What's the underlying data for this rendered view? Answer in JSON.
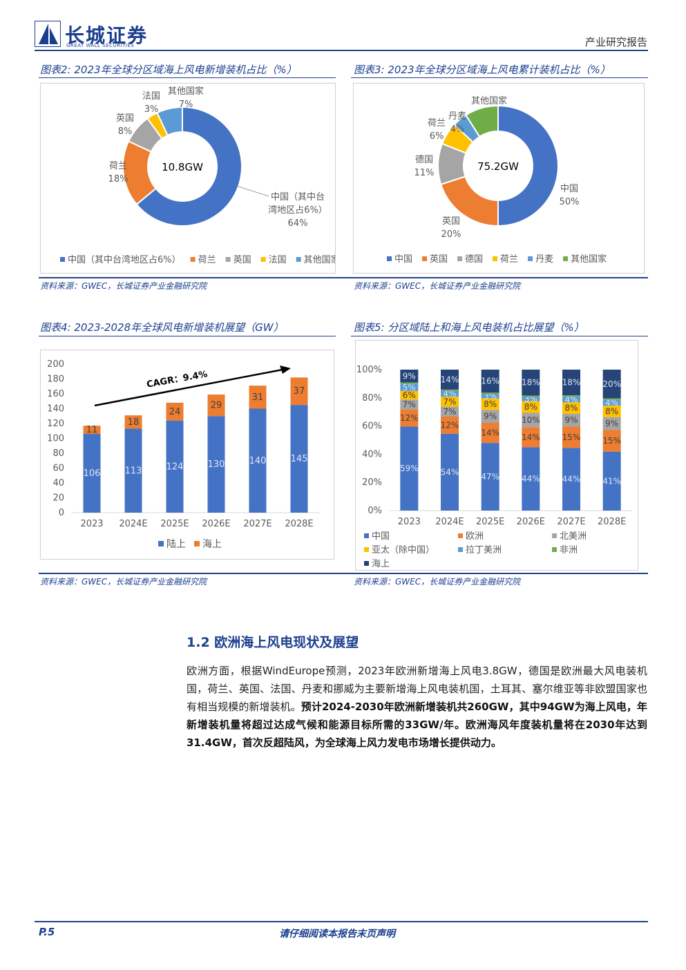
{
  "header": {
    "logo_cn": "长城证券",
    "logo_en": "GREAT WALL SECURITIES",
    "report_type": "产业研究报告"
  },
  "fig2": {
    "title": "图表2: 2023年全球分区域海上风电新增装机占比（%）",
    "source": "资料来源：GWEC，长城证券产业金融研究院",
    "center_label": "10.8GW",
    "chart_data": {
      "type": "pie",
      "donut": true,
      "slices": [
        {
          "name": "中国（其中台湾地区占6%）",
          "value": 64,
          "color": "#4472C4",
          "label_lines": [
            "中国（其中台",
            "湾地区占6%）",
            "64%"
          ]
        },
        {
          "name": "荷兰",
          "value": 18,
          "color": "#ED7D31",
          "label_lines": [
            "荷兰",
            "18%"
          ]
        },
        {
          "name": "英国",
          "value": 8,
          "color": "#A5A5A5",
          "label_lines": [
            "英国",
            "8%"
          ]
        },
        {
          "name": "法国",
          "value": 3,
          "color": "#FFC000",
          "label_lines": [
            "法国",
            "3%"
          ]
        },
        {
          "name": "其他国家",
          "value": 7,
          "color": "#5B9BD5",
          "label_lines": [
            "其他国家",
            "7%"
          ]
        }
      ],
      "legend": [
        "中国（其中台湾地区占6%）",
        "荷兰",
        "英国",
        "法国",
        "其他国家"
      ],
      "legend_position": "bottom"
    }
  },
  "fig3": {
    "title": "图表3: 2023年全球分区域海上风电累计装机占比（%）",
    "source": "资料来源：GWEC，长城证券产业金融研究院",
    "center_label": "75.2GW",
    "chart_data": {
      "type": "pie",
      "donut": true,
      "slices": [
        {
          "name": "中国",
          "value": 50,
          "color": "#4472C4",
          "label_lines": [
            "中国",
            "50%"
          ]
        },
        {
          "name": "英国",
          "value": 20,
          "color": "#ED7D31",
          "label_lines": [
            "英国",
            "20%"
          ]
        },
        {
          "name": "德国",
          "value": 11,
          "color": "#A5A5A5",
          "label_lines": [
            "德国",
            "11%"
          ]
        },
        {
          "name": "荷兰",
          "value": 6,
          "color": "#FFC000",
          "label_lines": [
            "荷兰",
            "6%"
          ]
        },
        {
          "name": "丹麦",
          "value": 4,
          "color": "#5B9BD5",
          "label_lines": [
            "丹麦",
            "4%"
          ]
        },
        {
          "name": "其他国家",
          "value": 9,
          "color": "#70AD47",
          "label_lines": [
            "其他国家"
          ]
        }
      ],
      "legend": [
        "中国",
        "英国",
        "德国",
        "荷兰",
        "丹麦",
        "其他国家"
      ],
      "legend_position": "bottom"
    }
  },
  "fig4": {
    "title": "图表4: 2023-2028年全球风电新增装机展望（GW）",
    "source": "资料来源：GWEC，长城证券产业金融研究院",
    "annotation": "CAGR：9.4%",
    "chart_data": {
      "type": "bar",
      "stacked": true,
      "categories": [
        "2023",
        "2024E",
        "2025E",
        "2026E",
        "2027E",
        "2028E"
      ],
      "series": [
        {
          "name": "陆上",
          "values": [
            106,
            113,
            124,
            130,
            140,
            145
          ],
          "color": "#4472C4"
        },
        {
          "name": "海上",
          "values": [
            11,
            18,
            24,
            29,
            31,
            37
          ],
          "color": "#ED7D31"
        }
      ],
      "ylim": [
        0,
        200
      ],
      "yticks": [
        0,
        20,
        40,
        60,
        80,
        100,
        120,
        140,
        160,
        180,
        200
      ],
      "legend_position": "bottom"
    }
  },
  "fig5": {
    "title": "图表5: 分区域陆上和海上风电装机占比展望（%）",
    "source": "资料来源：GWEC，长城证券产业金融研究院",
    "chart_data": {
      "type": "bar",
      "stacked": true,
      "percent": true,
      "categories": [
        "2023",
        "2024E",
        "2025E",
        "2026E",
        "2027E",
        "2028E"
      ],
      "series": [
        {
          "name": "中国",
          "values": [
            59,
            54,
            47,
            44,
            44,
            41
          ],
          "color": "#4472C4"
        },
        {
          "name": "欧洲",
          "values": [
            12,
            12,
            14,
            14,
            15,
            15
          ],
          "color": "#ED7D31"
        },
        {
          "name": "北美洲",
          "values": [
            7,
            7,
            9,
            10,
            9,
            9
          ],
          "color": "#A5A5A5"
        },
        {
          "name": "亚太（除中国）",
          "values": [
            6,
            7,
            8,
            8,
            8,
            8
          ],
          "color": "#FFC000"
        },
        {
          "name": "拉丁美洲",
          "values": [
            5,
            4,
            3,
            3,
            4,
            4
          ],
          "color": "#5B9BD5"
        },
        {
          "name": "非洲",
          "values": [
            1,
            1,
            1,
            1,
            1,
            1
          ],
          "color": "#70AD47"
        },
        {
          "name": "海上",
          "values": [
            9,
            14,
            16,
            18,
            18,
            20
          ],
          "color": "#264478"
        }
      ],
      "ylim": [
        0,
        100
      ],
      "yticks": [
        "0%",
        "20%",
        "40%",
        "60%",
        "80%",
        "100%"
      ],
      "legend_position": "bottom"
    }
  },
  "section": {
    "title": "1.2 欧洲海上风电现状及展望",
    "para_normal": "欧洲方面，根据WindEurope预测，2023年欧洲新增海上风电3.8GW，德国是欧洲最大风电装机国，荷兰、英国、法国、丹麦和挪威为主要新增海上风电装机国，土耳其、塞尔维亚等非欧盟国家也有相当规模的新增装机。",
    "para_bold": "预计2024-2030年欧洲新增装机共260GW，其中94GW为海上风电，年新增装机量将超过达成气候和能源目标所需的33GW/年。欧洲海风年度装机量将在2030年达到31.4GW，首次反超陆风，为全球海上风力发电市场增长提供动力。"
  },
  "footer": {
    "page": "P.5",
    "disclaimer": "请仔细阅读本报告末页声明"
  }
}
